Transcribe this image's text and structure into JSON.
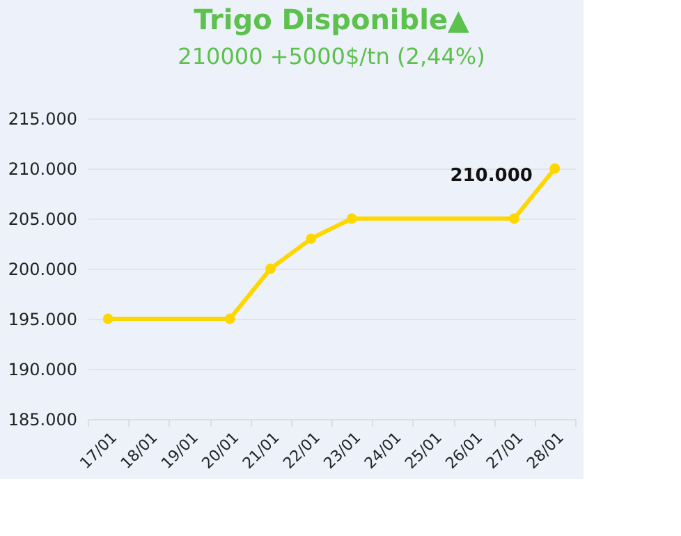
{
  "chart_data": {
    "type": "line",
    "title": "Trigo Disponible▲",
    "subtitle": "210000 +5000$/tn (2,44%)",
    "categories": [
      "17/01",
      "18/01",
      "19/01",
      "20/01",
      "21/01",
      "22/01",
      "23/01",
      "24/01",
      "25/01",
      "26/01",
      "27/01",
      "28/01"
    ],
    "series": [
      {
        "color": "#ffd700",
        "values": [
          195000,
          null,
          null,
          195000,
          200000,
          203000,
          205000,
          null,
          null,
          null,
          205000,
          210000
        ]
      }
    ],
    "ylim": [
      185000,
      215000
    ],
    "yticks": [
      {
        "value": 185000,
        "label": "185.000"
      },
      {
        "value": 190000,
        "label": "190.000"
      },
      {
        "value": 195000,
        "label": "195.000"
      },
      {
        "value": 200000,
        "label": "200.000"
      },
      {
        "value": 205000,
        "label": "205.000"
      },
      {
        "value": 210000,
        "label": "210.000"
      },
      {
        "value": 215000,
        "label": "215.000"
      }
    ],
    "annotations": [
      {
        "text": "210.000",
        "x": "28/01",
        "y": 210000
      }
    ],
    "grid": "y",
    "marker": "circle",
    "line_style": "solid"
  }
}
